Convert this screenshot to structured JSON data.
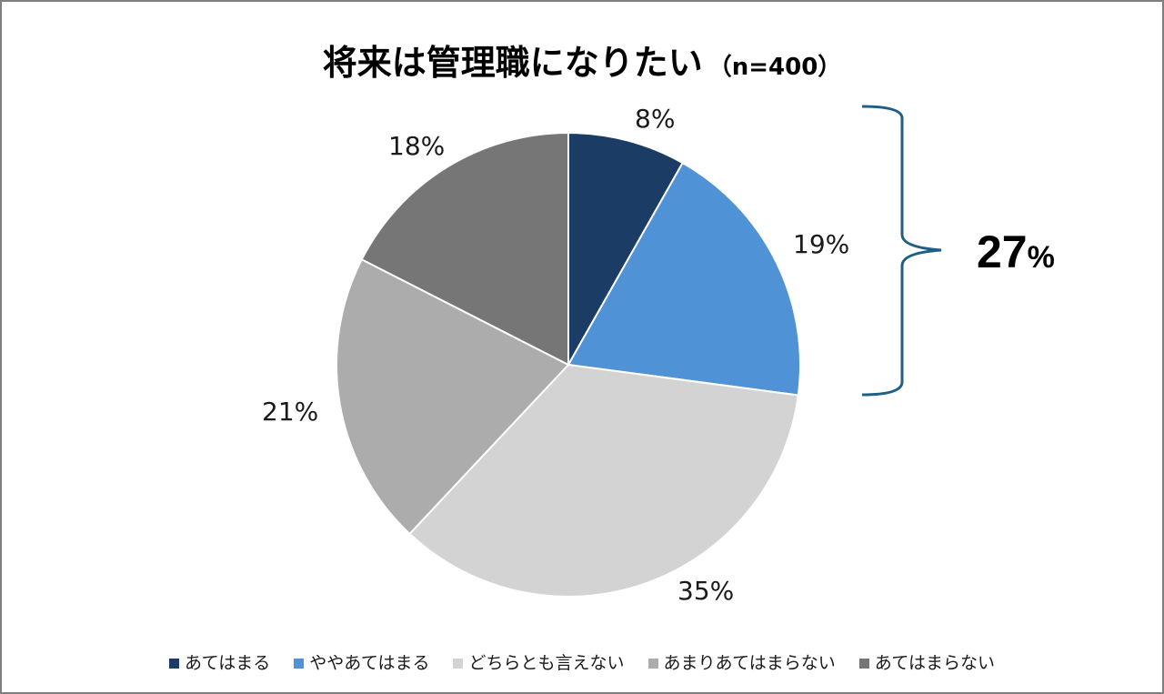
{
  "chart_data": {
    "type": "pie",
    "title": "将来は管理職になりたい",
    "subtitle": "（n=400）",
    "start_angle_deg": 0,
    "direction": "clockwise",
    "categories": [
      "あてはまる",
      "ややあてはまる",
      "どちらとも言えない",
      "あまりあてはまらない",
      "あてはまらない"
    ],
    "values": [
      8,
      19,
      35,
      21,
      18
    ],
    "slice_share_pct": [
      8.2,
      18.9,
      34.9,
      20.5,
      17.5
    ],
    "data_labels": [
      "8%",
      "19%",
      "35%",
      "21%",
      "18%"
    ],
    "colors": [
      "#1b3c64",
      "#4f93d6",
      "#d3d3d3",
      "#acacac",
      "#767676"
    ],
    "annotation": {
      "type": "brace",
      "spans": [
        "あてはまる",
        "ややあてはまる"
      ],
      "label_value": "27",
      "label_unit": "%",
      "color": "#1f5f86"
    },
    "legend_position": "bottom"
  },
  "title": {
    "main": "将来は管理職になりたい",
    "n": "（n=400）"
  },
  "labels": [
    "8%",
    "19%",
    "35%",
    "21%",
    "18%"
  ],
  "total": {
    "value": "27",
    "unit": "%"
  },
  "legend": [
    {
      "label": "あてはまる",
      "color": "#1b3c64"
    },
    {
      "label": "ややあてはまる",
      "color": "#4f93d6"
    },
    {
      "label": "どちらとも言えない",
      "color": "#d3d3d3"
    },
    {
      "label": "あまりあてはまらない",
      "color": "#acacac"
    },
    {
      "label": "あてはまらない",
      "color": "#767676"
    }
  ]
}
